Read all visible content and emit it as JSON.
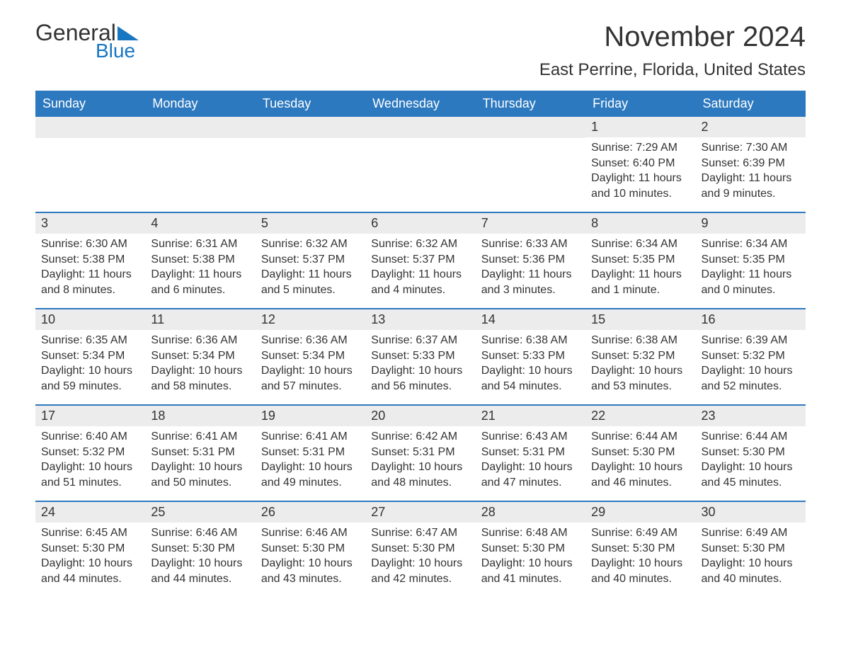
{
  "logo": {
    "word1": "General",
    "word2": "Blue",
    "triangle_color": "#1976c1"
  },
  "title": "November 2024",
  "location": "East Perrine, Florida, United States",
  "colors": {
    "header_bg": "#2d79bf",
    "header_text": "#ffffff",
    "daynum_bg": "#ececec",
    "border": "#2d79bf",
    "text": "#333333",
    "logo_blue": "#1976c1"
  },
  "day_headers": [
    "Sunday",
    "Monday",
    "Tuesday",
    "Wednesday",
    "Thursday",
    "Friday",
    "Saturday"
  ],
  "weeks": [
    [
      null,
      null,
      null,
      null,
      null,
      {
        "n": "1",
        "sunrise": "Sunrise: 7:29 AM",
        "sunset": "Sunset: 6:40 PM",
        "day1": "Daylight: 11 hours",
        "day2": "and 10 minutes."
      },
      {
        "n": "2",
        "sunrise": "Sunrise: 7:30 AM",
        "sunset": "Sunset: 6:39 PM",
        "day1": "Daylight: 11 hours",
        "day2": "and 9 minutes."
      }
    ],
    [
      {
        "n": "3",
        "sunrise": "Sunrise: 6:30 AM",
        "sunset": "Sunset: 5:38 PM",
        "day1": "Daylight: 11 hours",
        "day2": "and 8 minutes."
      },
      {
        "n": "4",
        "sunrise": "Sunrise: 6:31 AM",
        "sunset": "Sunset: 5:38 PM",
        "day1": "Daylight: 11 hours",
        "day2": "and 6 minutes."
      },
      {
        "n": "5",
        "sunrise": "Sunrise: 6:32 AM",
        "sunset": "Sunset: 5:37 PM",
        "day1": "Daylight: 11 hours",
        "day2": "and 5 minutes."
      },
      {
        "n": "6",
        "sunrise": "Sunrise: 6:32 AM",
        "sunset": "Sunset: 5:37 PM",
        "day1": "Daylight: 11 hours",
        "day2": "and 4 minutes."
      },
      {
        "n": "7",
        "sunrise": "Sunrise: 6:33 AM",
        "sunset": "Sunset: 5:36 PM",
        "day1": "Daylight: 11 hours",
        "day2": "and 3 minutes."
      },
      {
        "n": "8",
        "sunrise": "Sunrise: 6:34 AM",
        "sunset": "Sunset: 5:35 PM",
        "day1": "Daylight: 11 hours",
        "day2": "and 1 minute."
      },
      {
        "n": "9",
        "sunrise": "Sunrise: 6:34 AM",
        "sunset": "Sunset: 5:35 PM",
        "day1": "Daylight: 11 hours",
        "day2": "and 0 minutes."
      }
    ],
    [
      {
        "n": "10",
        "sunrise": "Sunrise: 6:35 AM",
        "sunset": "Sunset: 5:34 PM",
        "day1": "Daylight: 10 hours",
        "day2": "and 59 minutes."
      },
      {
        "n": "11",
        "sunrise": "Sunrise: 6:36 AM",
        "sunset": "Sunset: 5:34 PM",
        "day1": "Daylight: 10 hours",
        "day2": "and 58 minutes."
      },
      {
        "n": "12",
        "sunrise": "Sunrise: 6:36 AM",
        "sunset": "Sunset: 5:34 PM",
        "day1": "Daylight: 10 hours",
        "day2": "and 57 minutes."
      },
      {
        "n": "13",
        "sunrise": "Sunrise: 6:37 AM",
        "sunset": "Sunset: 5:33 PM",
        "day1": "Daylight: 10 hours",
        "day2": "and 56 minutes."
      },
      {
        "n": "14",
        "sunrise": "Sunrise: 6:38 AM",
        "sunset": "Sunset: 5:33 PM",
        "day1": "Daylight: 10 hours",
        "day2": "and 54 minutes."
      },
      {
        "n": "15",
        "sunrise": "Sunrise: 6:38 AM",
        "sunset": "Sunset: 5:32 PM",
        "day1": "Daylight: 10 hours",
        "day2": "and 53 minutes."
      },
      {
        "n": "16",
        "sunrise": "Sunrise: 6:39 AM",
        "sunset": "Sunset: 5:32 PM",
        "day1": "Daylight: 10 hours",
        "day2": "and 52 minutes."
      }
    ],
    [
      {
        "n": "17",
        "sunrise": "Sunrise: 6:40 AM",
        "sunset": "Sunset: 5:32 PM",
        "day1": "Daylight: 10 hours",
        "day2": "and 51 minutes."
      },
      {
        "n": "18",
        "sunrise": "Sunrise: 6:41 AM",
        "sunset": "Sunset: 5:31 PM",
        "day1": "Daylight: 10 hours",
        "day2": "and 50 minutes."
      },
      {
        "n": "19",
        "sunrise": "Sunrise: 6:41 AM",
        "sunset": "Sunset: 5:31 PM",
        "day1": "Daylight: 10 hours",
        "day2": "and 49 minutes."
      },
      {
        "n": "20",
        "sunrise": "Sunrise: 6:42 AM",
        "sunset": "Sunset: 5:31 PM",
        "day1": "Daylight: 10 hours",
        "day2": "and 48 minutes."
      },
      {
        "n": "21",
        "sunrise": "Sunrise: 6:43 AM",
        "sunset": "Sunset: 5:31 PM",
        "day1": "Daylight: 10 hours",
        "day2": "and 47 minutes."
      },
      {
        "n": "22",
        "sunrise": "Sunrise: 6:44 AM",
        "sunset": "Sunset: 5:30 PM",
        "day1": "Daylight: 10 hours",
        "day2": "and 46 minutes."
      },
      {
        "n": "23",
        "sunrise": "Sunrise: 6:44 AM",
        "sunset": "Sunset: 5:30 PM",
        "day1": "Daylight: 10 hours",
        "day2": "and 45 minutes."
      }
    ],
    [
      {
        "n": "24",
        "sunrise": "Sunrise: 6:45 AM",
        "sunset": "Sunset: 5:30 PM",
        "day1": "Daylight: 10 hours",
        "day2": "and 44 minutes."
      },
      {
        "n": "25",
        "sunrise": "Sunrise: 6:46 AM",
        "sunset": "Sunset: 5:30 PM",
        "day1": "Daylight: 10 hours",
        "day2": "and 44 minutes."
      },
      {
        "n": "26",
        "sunrise": "Sunrise: 6:46 AM",
        "sunset": "Sunset: 5:30 PM",
        "day1": "Daylight: 10 hours",
        "day2": "and 43 minutes."
      },
      {
        "n": "27",
        "sunrise": "Sunrise: 6:47 AM",
        "sunset": "Sunset: 5:30 PM",
        "day1": "Daylight: 10 hours",
        "day2": "and 42 minutes."
      },
      {
        "n": "28",
        "sunrise": "Sunrise: 6:48 AM",
        "sunset": "Sunset: 5:30 PM",
        "day1": "Daylight: 10 hours",
        "day2": "and 41 minutes."
      },
      {
        "n": "29",
        "sunrise": "Sunrise: 6:49 AM",
        "sunset": "Sunset: 5:30 PM",
        "day1": "Daylight: 10 hours",
        "day2": "and 40 minutes."
      },
      {
        "n": "30",
        "sunrise": "Sunrise: 6:49 AM",
        "sunset": "Sunset: 5:30 PM",
        "day1": "Daylight: 10 hours",
        "day2": "and 40 minutes."
      }
    ]
  ]
}
